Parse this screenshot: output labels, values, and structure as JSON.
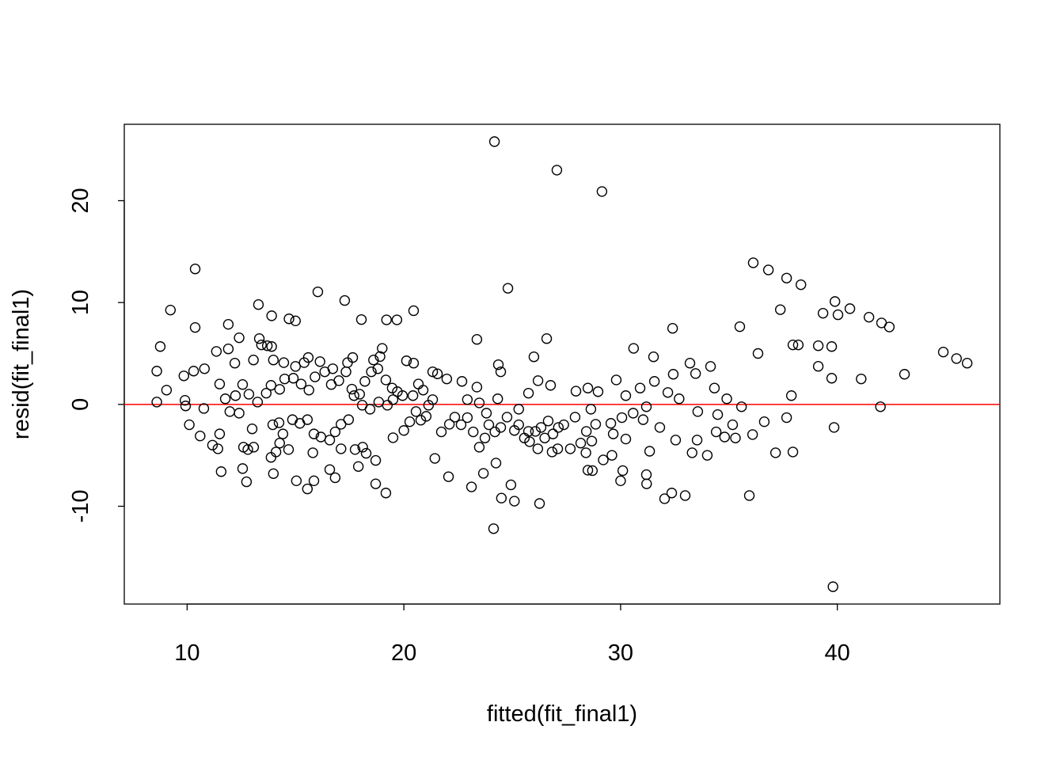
{
  "chart_data": {
    "type": "scatter",
    "title": "",
    "xlabel": "fitted(fit_final1)",
    "ylabel": "resid(fit_final1)",
    "xlim": [
      7.1,
      47.5
    ],
    "ylim": [
      -19.6,
      27.5
    ],
    "xticks": [
      10,
      20,
      30,
      40
    ],
    "yticks": [
      -10,
      0,
      10,
      20
    ],
    "xtick_labels": [
      "10",
      "20",
      "30",
      "40"
    ],
    "ytick_labels": [
      "-10",
      "0",
      "10",
      "20"
    ],
    "grid": false,
    "marker": "open-circle",
    "point_color": "#000000",
    "reference_line": {
      "y": 0,
      "color": "#FF0000"
    },
    "points": [
      [
        24.18,
        25.8
      ],
      [
        27.06,
        23.0
      ],
      [
        29.14,
        20.9
      ],
      [
        10.37,
        13.3
      ],
      [
        36.12,
        13.9
      ],
      [
        36.82,
        13.2
      ],
      [
        37.66,
        12.4
      ],
      [
        38.32,
        11.75
      ],
      [
        24.8,
        11.4
      ],
      [
        16.03,
        11.05
      ],
      [
        17.27,
        10.2
      ],
      [
        39.89,
        10.1
      ],
      [
        40.58,
        9.4
      ],
      [
        13.29,
        9.8
      ],
      [
        9.23,
        9.26
      ],
      [
        20.45,
        9.2
      ],
      [
        37.37,
        9.3
      ],
      [
        39.34,
        8.95
      ],
      [
        40.03,
        8.8
      ],
      [
        41.46,
        8.56
      ],
      [
        42.04,
        8.0
      ],
      [
        42.4,
        7.6
      ],
      [
        13.9,
        8.7
      ],
      [
        14.7,
        8.4
      ],
      [
        15.0,
        8.2
      ],
      [
        18.04,
        8.33
      ],
      [
        19.2,
        8.3
      ],
      [
        19.68,
        8.3
      ],
      [
        10.37,
        7.55
      ],
      [
        11.9,
        7.86
      ],
      [
        32.4,
        7.47
      ],
      [
        35.5,
        7.63
      ],
      [
        8.76,
        5.68
      ],
      [
        23.37,
        6.38
      ],
      [
        26.59,
        6.46
      ],
      [
        30.6,
        5.5
      ],
      [
        31.52,
        4.67
      ],
      [
        37.95,
        5.84
      ],
      [
        38.2,
        5.84
      ],
      [
        39.12,
        5.76
      ],
      [
        39.74,
        5.68
      ],
      [
        36.34,
        5.0
      ],
      [
        44.89,
        5.14
      ],
      [
        45.5,
        4.5
      ],
      [
        45.99,
        4.05
      ],
      [
        43.1,
        2.96
      ],
      [
        41.1,
        2.5
      ],
      [
        39.74,
        2.57
      ],
      [
        39.12,
        3.74
      ],
      [
        37.88,
        0.86
      ],
      [
        41.99,
        -0.23
      ],
      [
        39.85,
        -2.26
      ],
      [
        39.8,
        -17.9
      ],
      [
        35.94,
        -8.95
      ],
      [
        24.14,
        -12.2
      ],
      [
        26.26,
        -9.73
      ],
      [
        24.5,
        -9.2
      ],
      [
        25.1,
        -9.5
      ],
      [
        32.98,
        -8.95
      ],
      [
        32.03,
        -9.26
      ],
      [
        32.36,
        -8.7
      ],
      [
        19.17,
        -8.7
      ],
      [
        15.55,
        -8.3
      ],
      [
        23.12,
        -8.1
      ],
      [
        18.7,
        -7.8
      ],
      [
        24.94,
        -7.9
      ],
      [
        12.74,
        -7.6
      ],
      [
        22.06,
        -7.1
      ],
      [
        28.49,
        -6.46
      ],
      [
        28.7,
        -6.5
      ],
      [
        30.1,
        -6.5
      ],
      [
        31.19,
        -6.9
      ],
      [
        31.2,
        -7.8
      ],
      [
        30.0,
        -7.5
      ],
      [
        11.57,
        -6.6
      ],
      [
        13.98,
        -6.8
      ],
      [
        16.58,
        -6.4
      ],
      [
        16.83,
        -7.2
      ],
      [
        15.04,
        -7.5
      ],
      [
        15.85,
        -7.5
      ],
      [
        37.15,
        -4.75
      ],
      [
        37.95,
        -4.67
      ],
      [
        37.66,
        -1.3
      ],
      [
        36.63,
        -1.7
      ],
      [
        36.09,
        -2.96
      ],
      [
        35.58,
        -0.23
      ],
      [
        35.3,
        -3.3
      ],
      [
        34.8,
        -3.2
      ],
      [
        35.17,
        -2.0
      ],
      [
        34.41,
        -2.7
      ],
      [
        34.0,
        -5.0
      ],
      [
        33.3,
        -4.75
      ],
      [
        33.53,
        -3.5
      ],
      [
        32.54,
        -3.5
      ],
      [
        34.9,
        0.55
      ],
      [
        34.33,
        1.6
      ],
      [
        34.15,
        3.73
      ],
      [
        33.46,
        3.03
      ],
      [
        33.2,
        4.05
      ],
      [
        32.43,
        2.96
      ],
      [
        30.9,
        1.6
      ],
      [
        29.8,
        2.4
      ],
      [
        30.24,
        0.86
      ],
      [
        31.56,
        2.26
      ],
      [
        32.18,
        1.17
      ],
      [
        32.7,
        0.55
      ],
      [
        33.56,
        -0.7
      ],
      [
        34.48,
        -1.0
      ],
      [
        31.19,
        -0.23
      ],
      [
        31.81,
        -2.26
      ],
      [
        31.34,
        -4.6
      ],
      [
        30.24,
        -3.4
      ],
      [
        29.6,
        -5.0
      ],
      [
        29.2,
        -5.45
      ],
      [
        27.94,
        1.3
      ],
      [
        28.49,
        1.6
      ],
      [
        28.96,
        1.25
      ],
      [
        28.63,
        -0.47
      ],
      [
        27.9,
        -1.25
      ],
      [
        28.42,
        -2.65
      ],
      [
        28.16,
        -3.8
      ],
      [
        28.67,
        -3.6
      ],
      [
        27.68,
        -4.36
      ],
      [
        28.4,
        -4.75
      ],
      [
        26.77,
        1.87
      ],
      [
        26.19,
        2.33
      ],
      [
        26.0,
        4.67
      ],
      [
        25.75,
        1.1
      ],
      [
        24.36,
        3.9
      ],
      [
        24.47,
        3.2
      ],
      [
        24.33,
        0.55
      ],
      [
        23.37,
        1.7
      ],
      [
        22.68,
        2.26
      ],
      [
        21.98,
        2.5
      ],
      [
        21.33,
        3.2
      ],
      [
        21.55,
        3.0
      ],
      [
        20.67,
        2.0
      ],
      [
        20.12,
        4.28
      ],
      [
        20.45,
        4.05
      ],
      [
        19.0,
        5.5
      ],
      [
        18.9,
        4.7
      ],
      [
        18.6,
        4.36
      ],
      [
        17.64,
        4.6
      ],
      [
        17.4,
        4.1
      ],
      [
        16.72,
        3.5
      ],
      [
        16.13,
        4.2
      ],
      [
        15.59,
        4.6
      ],
      [
        15.4,
        4.1
      ],
      [
        15.0,
        3.73
      ],
      [
        14.46,
        4.1
      ],
      [
        13.98,
        4.36
      ],
      [
        13.7,
        5.76
      ],
      [
        13.33,
        6.46
      ],
      [
        13.43,
        5.84
      ],
      [
        13.9,
        5.68
      ],
      [
        12.4,
        6.54
      ],
      [
        11.9,
        5.45
      ],
      [
        11.35,
        5.2
      ],
      [
        12.2,
        4.05
      ],
      [
        13.06,
        4.36
      ],
      [
        10.8,
        3.5
      ],
      [
        10.3,
        3.27
      ],
      [
        9.85,
        2.8
      ],
      [
        8.6,
        3.27
      ],
      [
        9.05,
        1.4
      ],
      [
        8.6,
        0.23
      ],
      [
        9.9,
        0.4
      ],
      [
        9.93,
        -0.15
      ],
      [
        10.77,
        -0.4
      ],
      [
        10.1,
        -2.0
      ],
      [
        10.6,
        -3.1
      ],
      [
        11.17,
        -4.0
      ],
      [
        11.42,
        -4.36
      ],
      [
        11.5,
        -2.9
      ],
      [
        11.97,
        -0.7
      ],
      [
        12.4,
        -0.86
      ],
      [
        12.6,
        -4.2
      ],
      [
        12.8,
        -4.43
      ],
      [
        13.07,
        -4.2
      ],
      [
        12.56,
        -6.3
      ],
      [
        13.0,
        -2.4
      ],
      [
        11.5,
        2.0
      ],
      [
        11.76,
        0.55
      ],
      [
        12.23,
        0.86
      ],
      [
        12.56,
        1.95
      ],
      [
        12.85,
        1.0
      ],
      [
        13.25,
        0.23
      ],
      [
        13.65,
        1.1
      ],
      [
        13.87,
        1.87
      ],
      [
        14.27,
        1.48
      ],
      [
        14.5,
        2.5
      ],
      [
        14.9,
        2.57
      ],
      [
        15.26,
        2.0
      ],
      [
        15.62,
        1.4
      ],
      [
        15.9,
        2.7
      ],
      [
        16.35,
        3.2
      ],
      [
        16.65,
        1.95
      ],
      [
        17.0,
        2.33
      ],
      [
        17.33,
        3.2
      ],
      [
        17.6,
        1.5
      ],
      [
        17.96,
        1.0
      ],
      [
        18.2,
        2.26
      ],
      [
        18.5,
        3.2
      ],
      [
        18.8,
        3.5
      ],
      [
        19.17,
        2.4
      ],
      [
        19.46,
        1.6
      ],
      [
        19.7,
        1.25
      ],
      [
        19.94,
        0.86
      ],
      [
        19.5,
        0.47
      ],
      [
        19.24,
        -0.08
      ],
      [
        18.84,
        0.23
      ],
      [
        18.44,
        -0.47
      ],
      [
        18.08,
        -0.08
      ],
      [
        17.7,
        0.86
      ],
      [
        17.45,
        -1.5
      ],
      [
        17.1,
        -1.95
      ],
      [
        16.83,
        -2.7
      ],
      [
        16.58,
        -3.5
      ],
      [
        16.17,
        -3.2
      ],
      [
        15.85,
        -2.9
      ],
      [
        15.55,
        -1.5
      ],
      [
        15.2,
        -1.86
      ],
      [
        14.86,
        -1.5
      ],
      [
        14.42,
        -2.9
      ],
      [
        14.24,
        -1.8
      ],
      [
        13.95,
        -2.0
      ],
      [
        14.27,
        -3.8
      ],
      [
        14.1,
        -4.67
      ],
      [
        13.87,
        -5.2
      ],
      [
        14.68,
        -4.43
      ],
      [
        15.8,
        -4.75
      ],
      [
        17.1,
        -4.36
      ],
      [
        17.75,
        -4.43
      ],
      [
        18.1,
        -4.2
      ],
      [
        18.26,
        -4.8
      ],
      [
        18.7,
        -5.5
      ],
      [
        17.9,
        -6.1
      ],
      [
        19.5,
        -3.27
      ],
      [
        20.0,
        -2.56
      ],
      [
        20.27,
        -1.7
      ],
      [
        20.56,
        -0.7
      ],
      [
        20.78,
        -1.55
      ],
      [
        21.03,
        -1.17
      ],
      [
        21.43,
        -5.3
      ],
      [
        21.73,
        -2.7
      ],
      [
        22.1,
        -1.95
      ],
      [
        22.35,
        -1.25
      ],
      [
        22.64,
        -2.0
      ],
      [
        22.93,
        -1.3
      ],
      [
        23.2,
        -2.7
      ],
      [
        23.48,
        -4.2
      ],
      [
        23.74,
        -3.3
      ],
      [
        23.92,
        -2.0
      ],
      [
        24.2,
        -2.7
      ],
      [
        24.47,
        -2.26
      ],
      [
        24.76,
        -1.25
      ],
      [
        25.1,
        -2.56
      ],
      [
        25.3,
        -2.0
      ],
      [
        25.56,
        -3.3
      ],
      [
        25.8,
        -3.66
      ],
      [
        26.07,
        -2.65
      ],
      [
        26.33,
        -2.26
      ],
      [
        26.5,
        -3.3
      ],
      [
        26.66,
        -1.63
      ],
      [
        26.88,
        -2.9
      ],
      [
        27.13,
        -2.26
      ],
      [
        27.38,
        -2.0
      ],
      [
        24.25,
        -5.76
      ],
      [
        25.75,
        -2.65
      ],
      [
        26.18,
        -4.36
      ],
      [
        26.84,
        -4.67
      ],
      [
        25.3,
        -0.47
      ],
      [
        23.81,
        -0.86
      ],
      [
        23.48,
        0.15
      ],
      [
        22.93,
        0.47
      ],
      [
        21.33,
        0.47
      ],
      [
        20.89,
        1.4
      ],
      [
        20.42,
        0.86
      ],
      [
        21.14,
        -0.08
      ],
      [
        28.85,
        -1.95
      ],
      [
        29.55,
        -1.86
      ],
      [
        30.06,
        -1.3
      ],
      [
        30.58,
        -0.86
      ],
      [
        31.04,
        -1.5
      ],
      [
        29.66,
        -2.9
      ],
      [
        27.1,
        -4.36
      ],
      [
        23.67,
        -6.77
      ]
    ]
  }
}
